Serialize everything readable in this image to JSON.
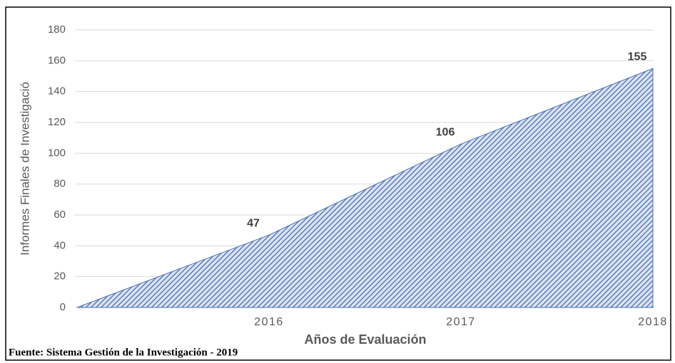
{
  "chart_data": {
    "type": "area",
    "x_label": "Años de Evaluación",
    "y_label": "Informes Finales de Investigació",
    "source": "Fuente: Sistema Gestión de la Investigación - 2019",
    "categories": [
      null,
      "2016",
      "2017",
      "2018"
    ],
    "series": [
      {
        "color": "#4a6fb3",
        "values": [
          0,
          47,
          106,
          155
        ]
      }
    ],
    "ylim": [
      0,
      180
    ],
    "yticks": [
      0,
      20,
      40,
      60,
      80,
      100,
      120,
      140,
      160,
      180
    ],
    "grid": true
  }
}
